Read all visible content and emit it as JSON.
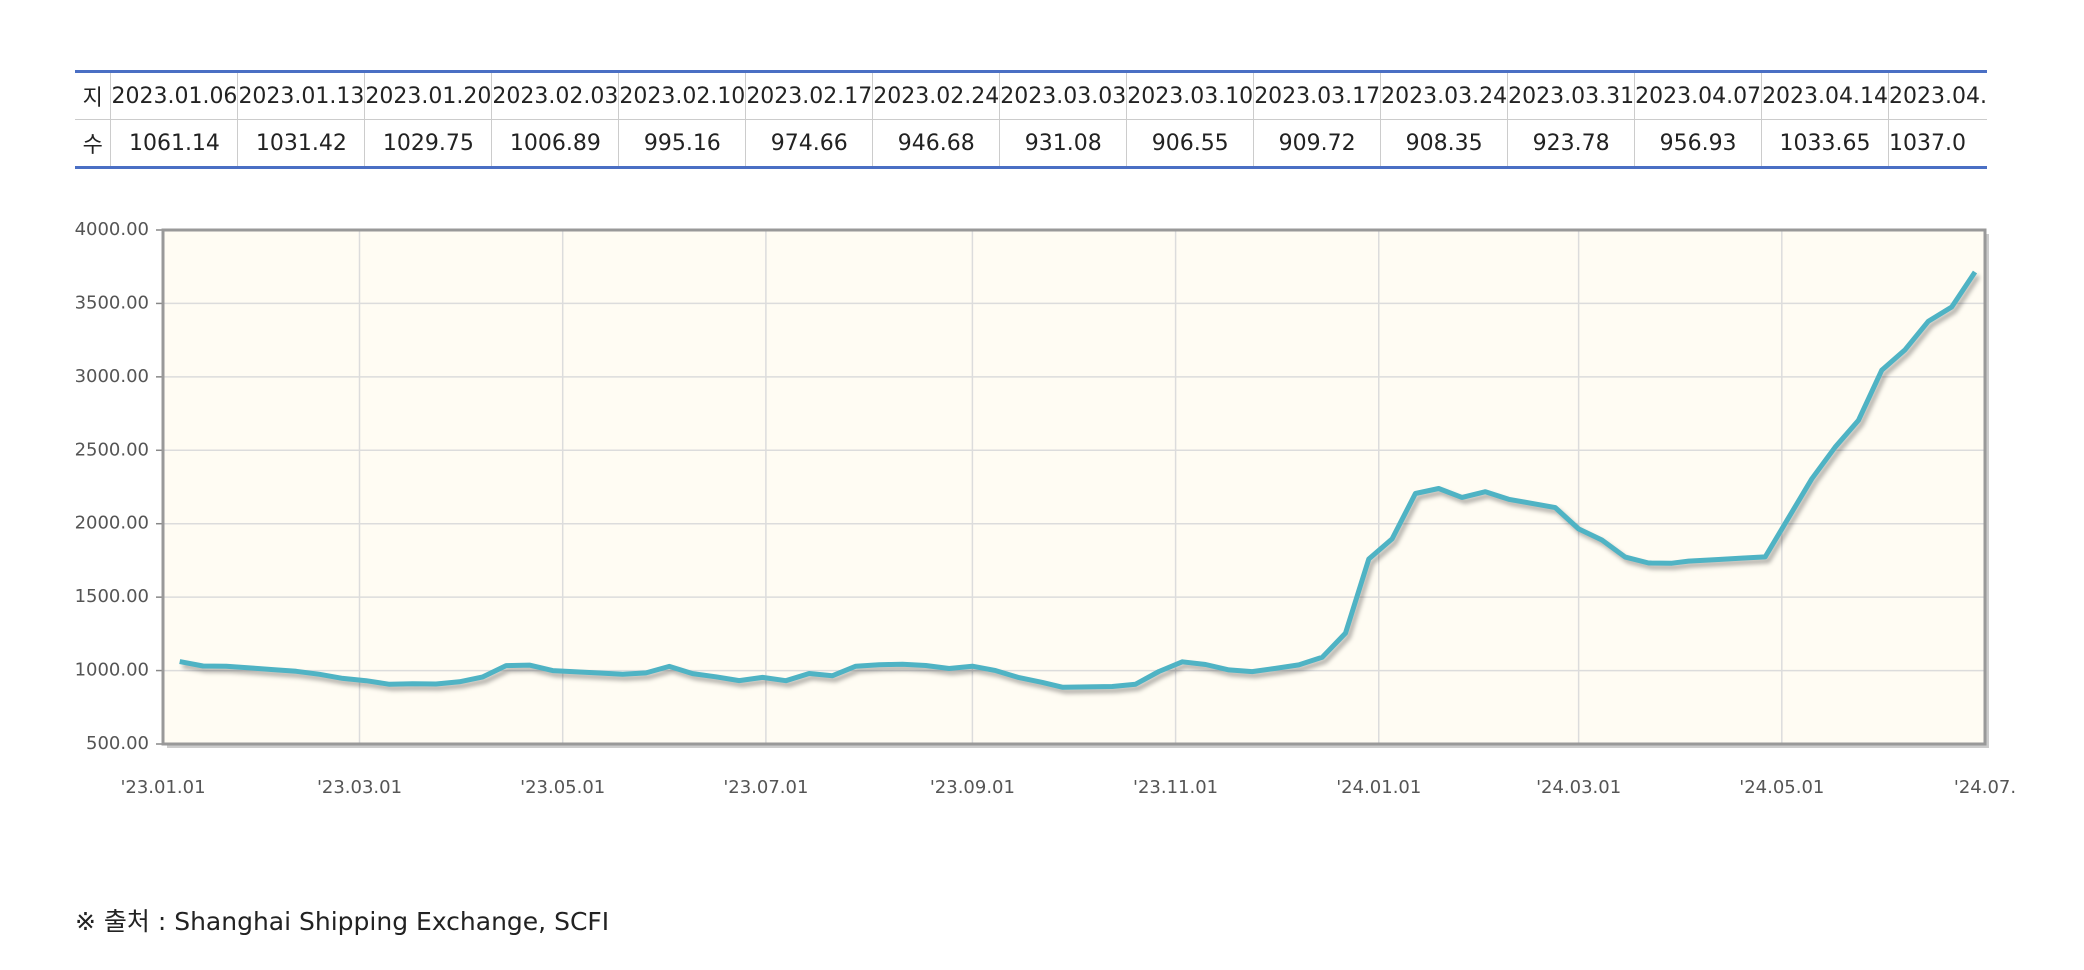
{
  "table": {
    "header": [
      "지",
      "2023.01.06",
      "2023.01.13",
      "2023.01.20",
      "2023.02.03",
      "2023.02.10",
      "2023.02.17",
      "2023.02.24",
      "2023.03.03",
      "2023.03.10",
      "2023.03.17",
      "2023.03.24",
      "2023.03.31",
      "2023.04.07",
      "2023.04.14",
      "2023.04."
    ],
    "rows": [
      [
        "수",
        "1061.14",
        "1031.42",
        "1029.75",
        "1006.89",
        "995.16",
        "974.66",
        "946.68",
        "931.08",
        "906.55",
        "909.72",
        "908.35",
        "923.78",
        "956.93",
        "1033.65",
        "1037.0"
      ]
    ]
  },
  "chart_data": {
    "type": "line",
    "x": [
      "2023-01-06",
      "2023-01-13",
      "2023-01-20",
      "2023-02-03",
      "2023-02-10",
      "2023-02-17",
      "2023-02-24",
      "2023-03-03",
      "2023-03-10",
      "2023-03-17",
      "2023-03-24",
      "2023-03-31",
      "2023-04-07",
      "2023-04-14",
      "2023-04-21",
      "2023-04-28",
      "2023-05-12",
      "2023-05-19",
      "2023-05-26",
      "2023-06-02",
      "2023-06-09",
      "2023-06-16",
      "2023-06-23",
      "2023-06-30",
      "2023-07-07",
      "2023-07-14",
      "2023-07-21",
      "2023-07-28",
      "2023-08-04",
      "2023-08-11",
      "2023-08-18",
      "2023-08-25",
      "2023-09-01",
      "2023-09-08",
      "2023-09-15",
      "2023-09-22",
      "2023-09-28",
      "2023-10-13",
      "2023-10-20",
      "2023-10-27",
      "2023-11-03",
      "2023-11-10",
      "2023-11-17",
      "2023-11-24",
      "2023-12-01",
      "2023-12-08",
      "2023-12-15",
      "2023-12-22",
      "2023-12-29",
      "2024-01-05",
      "2024-01-12",
      "2024-01-19",
      "2024-01-26",
      "2024-02-02",
      "2024-02-09",
      "2024-02-23",
      "2024-03-01",
      "2024-03-08",
      "2024-03-15",
      "2024-03-22",
      "2024-03-29",
      "2024-04-03",
      "2024-04-12",
      "2024-04-19",
      "2024-04-26",
      "2024-05-10",
      "2024-05-17",
      "2024-05-24",
      "2024-05-31",
      "2024-06-07",
      "2024-06-14",
      "2024-06-21",
      "2024-06-28"
    ],
    "series": [
      {
        "name": "SCFI",
        "color": "#4fb3c4",
        "values": [
          1061.14,
          1031.42,
          1029.75,
          1006.89,
          995.16,
          974.66,
          946.68,
          931.08,
          906.55,
          909.72,
          908.35,
          923.78,
          956.93,
          1033.65,
          1037.02,
          999.73,
          983.38,
          974.29,
          983.97,
          1028.58,
          979.47,
          957.54,
          931.7,
          953.6,
          931.34,
          979.85,
          965.15,
          1029.63,
          1039.25,
          1043.69,
          1034.28,
          1013.78,
          1029.99,
          999.86,
          952.21,
          919.24,
          886.85,
          891.42,
          907.47,
          993.69,
          1059.64,
          1041.62,
          1004.58,
          993.21,
          1014.76,
          1038.57,
          1090.43,
          1254.99,
          1759.57,
          1896.65,
          2206.03,
          2239.61,
          2179.09,
          2217.73,
          2166.38,
          2109.96,
          1964.91,
          1888.96,
          1772.66,
          1732.57,
          1730.97,
          1745.62,
          1756.49,
          1765.54,
          1774.07,
          2305.79,
          2520.75,
          2703.8,
          3044.77,
          3184.87,
          3379.22,
          3475.6,
          3714.32
        ]
      }
    ],
    "xlim": [
      "2023-01-01",
      "2024-07-01"
    ],
    "xticks": [
      {
        "value": "2023-01-01",
        "label": "'23.01.01"
      },
      {
        "value": "2023-03-01",
        "label": "'23.03.01"
      },
      {
        "value": "2023-05-01",
        "label": "'23.05.01"
      },
      {
        "value": "2023-07-01",
        "label": "'23.07.01"
      },
      {
        "value": "2023-09-01",
        "label": "'23.09.01"
      },
      {
        "value": "2023-11-01",
        "label": "'23.11.01"
      },
      {
        "value": "2024-01-01",
        "label": "'24.01.01"
      },
      {
        "value": "2024-03-01",
        "label": "'24.03.01"
      },
      {
        "value": "2024-05-01",
        "label": "'24.05.01"
      },
      {
        "value": "2024-07-01",
        "label": "'24.07."
      }
    ],
    "ylim": [
      500,
      4000
    ],
    "yticks": [
      {
        "value": 500,
        "label": "500.00"
      },
      {
        "value": 1000,
        "label": "1000.00"
      },
      {
        "value": 1500,
        "label": "1500.00"
      },
      {
        "value": 2000,
        "label": "2000.00"
      },
      {
        "value": 2500,
        "label": "2500.00"
      },
      {
        "value": 3000,
        "label": "3000.00"
      },
      {
        "value": 3500,
        "label": "3500.00"
      },
      {
        "value": 4000,
        "label": "4000.00"
      }
    ],
    "grid": true
  },
  "source": "※ 출처 : Shanghai Shipping Exchange, SCFI"
}
